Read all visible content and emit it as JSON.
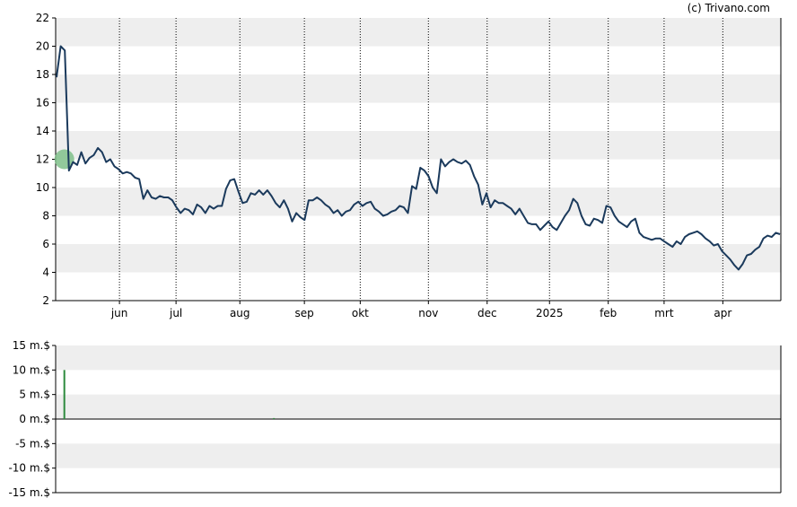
{
  "credit": "(c) Trivano.com",
  "colors": {
    "line": "#1b3a5c",
    "band": "#eeeeee",
    "volume_bar": "#2e8b3e",
    "marker": "#7fbf8a"
  },
  "chart_data": [
    {
      "type": "line",
      "title": "",
      "xlabel": "",
      "ylabel": "",
      "ylim": [
        2,
        22
      ],
      "yticks": [
        "2",
        "4",
        "6",
        "8",
        "10",
        "12",
        "14",
        "16",
        "18",
        "20",
        "22"
      ],
      "xticks": [
        {
          "label": "jun",
          "t": 0.088
        },
        {
          "label": "jul",
          "t": 0.166
        },
        {
          "label": "aug",
          "t": 0.254
        },
        {
          "label": "sep",
          "t": 0.343
        },
        {
          "label": "okt",
          "t": 0.42
        },
        {
          "label": "nov",
          "t": 0.514
        },
        {
          "label": "dec",
          "t": 0.595
        },
        {
          "label": "2025",
          "t": 0.681
        },
        {
          "label": "feb",
          "t": 0.762
        },
        {
          "label": "mrt",
          "t": 0.839
        },
        {
          "label": "apr",
          "t": 0.92
        }
      ],
      "grid": "vertical dotted at month ticks, horizontal alternating bands",
      "marker": {
        "t": 0.012,
        "value": 12.0
      },
      "series": [
        {
          "values": [
            17.8,
            20.0,
            19.7,
            11.2,
            11.8,
            11.6,
            12.5,
            11.7,
            12.1,
            12.3,
            12.8,
            12.5,
            11.8,
            12.0,
            11.5,
            11.3,
            11.0,
            11.1,
            11.0,
            10.7,
            10.6,
            9.2,
            9.8,
            9.3,
            9.2,
            9.4,
            9.3,
            9.3,
            9.1,
            8.6,
            8.2,
            8.5,
            8.4,
            8.1,
            8.8,
            8.6,
            8.2,
            8.7,
            8.5,
            8.7,
            8.7,
            9.9,
            10.5,
            10.6,
            9.7,
            8.9,
            9.0,
            9.6,
            9.5,
            9.8,
            9.5,
            9.8,
            9.4,
            8.9,
            8.6,
            9.1,
            8.5,
            7.6,
            8.2,
            7.9,
            7.7,
            9.1,
            9.1,
            9.3,
            9.1,
            8.8,
            8.6,
            8.2,
            8.4,
            8.0,
            8.3,
            8.4,
            8.8,
            9.0,
            8.7,
            8.9,
            9.0,
            8.5,
            8.3,
            8.0,
            8.1,
            8.3,
            8.4,
            8.7,
            8.6,
            8.2,
            10.1,
            9.9,
            11.4,
            11.2,
            10.8,
            10.0,
            9.6,
            12.0,
            11.5,
            11.8,
            12.0,
            11.8,
            11.7,
            11.9,
            11.6,
            10.8,
            10.2,
            8.8,
            9.6,
            8.6,
            9.1,
            8.9,
            8.9,
            8.7,
            8.5,
            8.1,
            8.5,
            8.0,
            7.5,
            7.4,
            7.4,
            7.0,
            7.3,
            7.6,
            7.2,
            7.0,
            7.5,
            8.0,
            8.4,
            9.2,
            8.9,
            8.0,
            7.4,
            7.3,
            7.8,
            7.7,
            7.5,
            8.7,
            8.6,
            8.0,
            7.6,
            7.4,
            7.2,
            7.6,
            7.8,
            6.8,
            6.5,
            6.4,
            6.3,
            6.4,
            6.4,
            6.2,
            6.0,
            5.8,
            6.2,
            6.0,
            6.5,
            6.7,
            6.8,
            6.9,
            6.7,
            6.4,
            6.2,
            5.9,
            6.0,
            5.5,
            5.2,
            4.9,
            4.5,
            4.2,
            4.6,
            5.2,
            5.3,
            5.6,
            5.8,
            6.4,
            6.6,
            6.5,
            6.8,
            6.7
          ]
        }
      ]
    },
    {
      "type": "bar",
      "title": "",
      "xlabel": "",
      "ylabel": "",
      "ylim": [
        -15,
        15
      ],
      "yticks": [
        "15 m.$",
        "10 m.$",
        "5 m.$",
        "0 m.$",
        "-5 m.$",
        "-10 m.$",
        "-15 m.$"
      ],
      "bars": [
        {
          "t": 0.012,
          "value": 10.0
        },
        {
          "t": 0.301,
          "value": 0.2
        }
      ]
    }
  ]
}
